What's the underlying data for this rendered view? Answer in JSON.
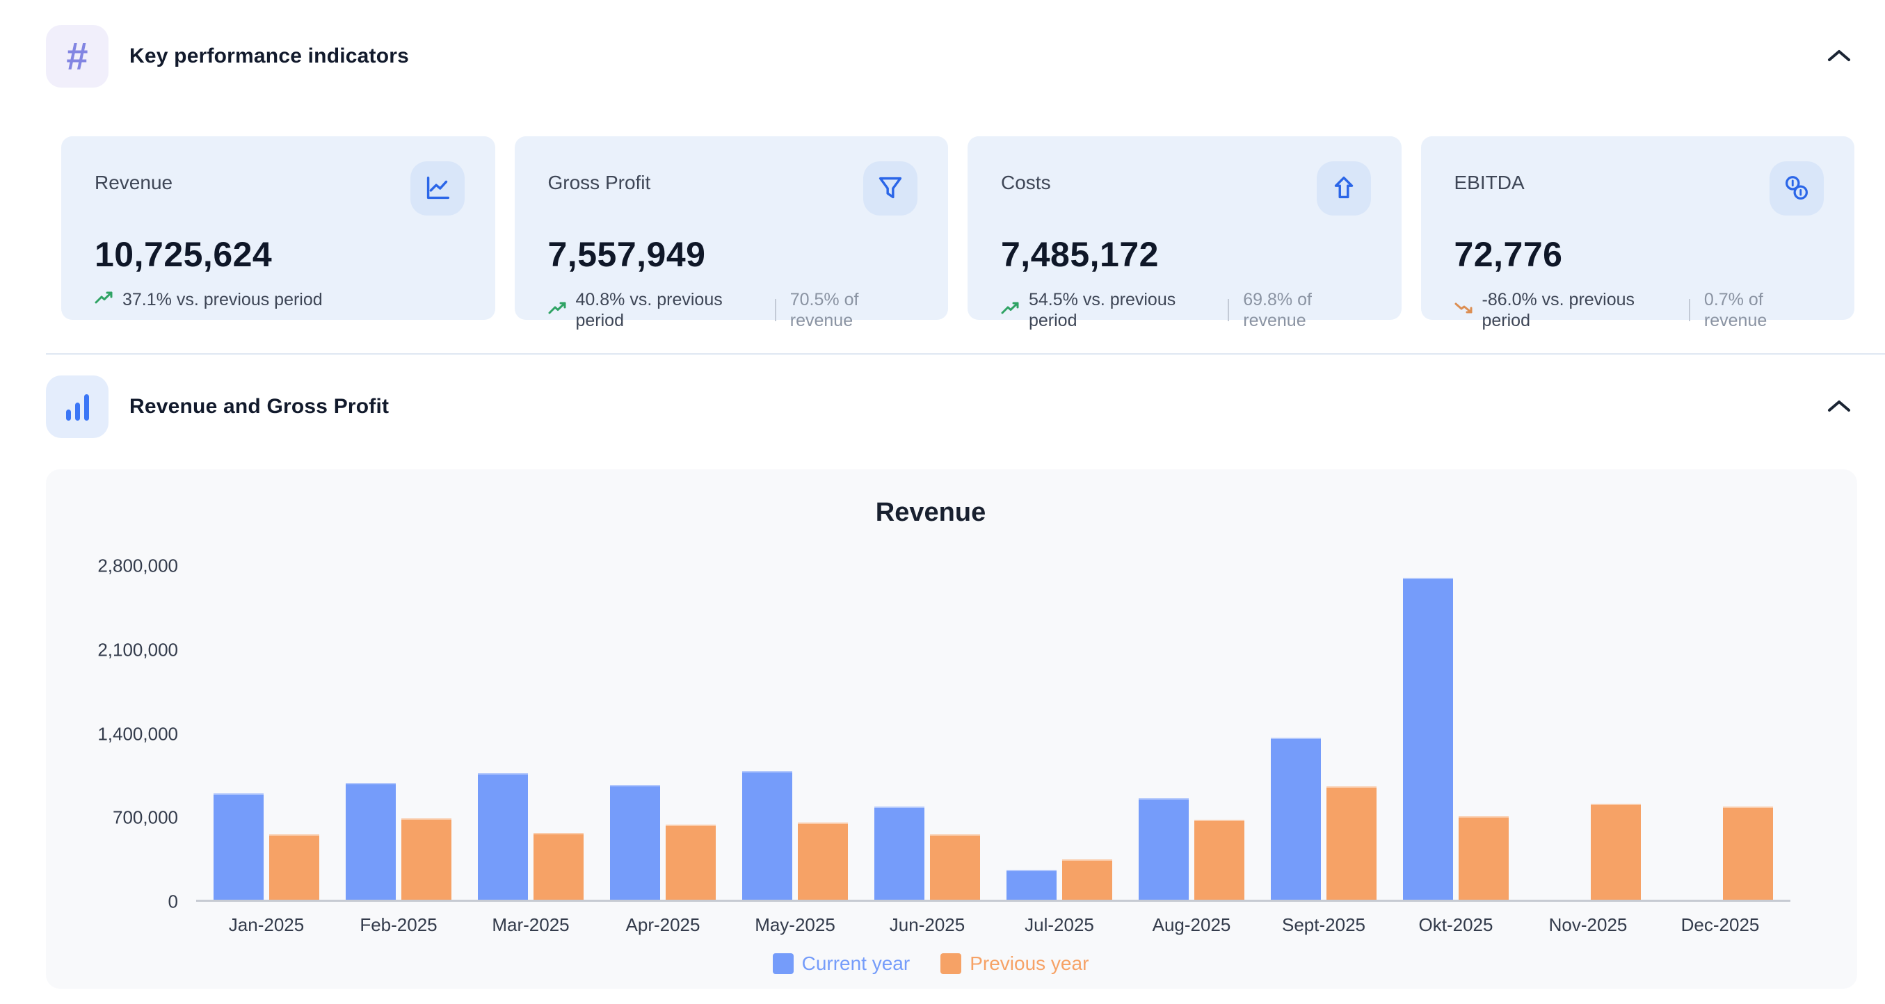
{
  "sections": {
    "kpi": {
      "title": "Key performance indicators",
      "icon": "hash-icon"
    },
    "revenue_gross_profit": {
      "title": "Revenue and Gross Profit",
      "icon": "bar-chart-icon"
    }
  },
  "kpi_cards": [
    {
      "label": "Revenue",
      "value": "10,725,624",
      "delta": "37.1% vs. previous period",
      "delta_direction": "up",
      "icon": "line-chart-icon"
    },
    {
      "label": "Gross Profit",
      "value": "7,557,949",
      "delta": "40.8% vs. previous period",
      "delta_direction": "up",
      "share": "70.5% of revenue",
      "icon": "filter-icon"
    },
    {
      "label": "Costs",
      "value": "7,485,172",
      "delta": "54.5% vs. previous period",
      "delta_direction": "up",
      "share": "69.8% of revenue",
      "icon": "arrow-up-icon"
    },
    {
      "label": "EBITDA",
      "value": "72,776",
      "delta": "-86.0% vs. previous period",
      "delta_direction": "down",
      "share": "0.7% of revenue",
      "icon": "coins-icon"
    }
  ],
  "chart_data": {
    "type": "bar",
    "title": "Revenue",
    "categories": [
      "Jan-2025",
      "Feb-2025",
      "Mar-2025",
      "Apr-2025",
      "May-2025",
      "Jun-2025",
      "Jul-2025",
      "Aug-2025",
      "Sept-2025",
      "Okt-2025",
      "Nov-2025",
      "Dec-2025"
    ],
    "series": [
      {
        "name": "Current year",
        "color": "#759CFA",
        "values": [
          890000,
          980000,
          1060000,
          960000,
          1080000,
          780000,
          250000,
          850000,
          1360000,
          2700000,
          null,
          null
        ]
      },
      {
        "name": "Previous year",
        "color": "#F6A266",
        "values": [
          550000,
          680000,
          560000,
          630000,
          645000,
          550000,
          340000,
          670000,
          950000,
          700000,
          805000,
          780000
        ]
      }
    ],
    "ylim": [
      0,
      2800000
    ],
    "y_ticks": [
      0,
      700000,
      1400000,
      2100000,
      2800000
    ],
    "y_tick_labels": [
      "0",
      "700,000",
      "1,400,000",
      "2,100,000",
      "2,800,000"
    ],
    "grid": false,
    "legend_position": "bottom"
  },
  "colors": {
    "accent_blue": "#2B66E8",
    "bar_current": "#759CFA",
    "bar_previous": "#F6A266",
    "trend_up_green": "#2FA364",
    "trend_down_orange": "#DC8E52",
    "card_bg": "#EAF1FB",
    "panel_bg": "#F8F9FB"
  }
}
